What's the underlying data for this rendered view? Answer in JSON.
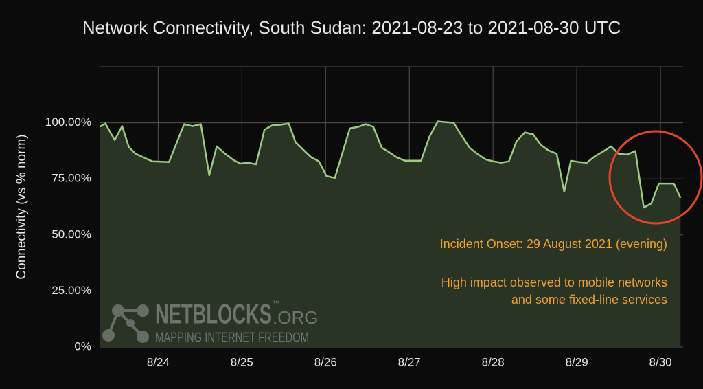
{
  "chart_data": {
    "type": "area",
    "title": "Network Connectivity, South Sudan: 2021-08-23 to 2021-08-30 UTC",
    "y_label": "Connectivity (vs % norm)",
    "x": [
      23.3,
      23.37,
      23.48,
      23.57,
      23.65,
      23.73,
      23.84,
      23.93,
      24.13,
      24.31,
      24.41,
      24.51,
      24.61,
      24.7,
      24.8,
      24.9,
      24.98,
      25.07,
      25.17,
      25.27,
      25.36,
      25.46,
      25.56,
      25.64,
      25.74,
      25.83,
      25.92,
      26.01,
      26.11,
      26.29,
      26.39,
      26.48,
      26.57,
      26.67,
      26.75,
      26.85,
      26.95,
      27.14,
      27.24,
      27.34,
      27.43,
      27.53,
      27.61,
      27.72,
      27.81,
      27.91,
      28.0,
      28.1,
      28.19,
      28.28,
      28.38,
      28.48,
      28.57,
      28.66,
      28.76,
      28.85,
      28.93,
      29.02,
      29.12,
      29.21,
      29.31,
      29.41,
      29.5,
      29.6,
      29.7,
      29.8,
      29.89,
      29.98,
      30.08,
      30.16,
      30.24
    ],
    "values": [
      98.2,
      99.7,
      92.3,
      98.5,
      89.2,
      86.2,
      84.3,
      82.8,
      82.5,
      99.4,
      98.5,
      99.4,
      76.6,
      89.5,
      86.2,
      83.4,
      81.8,
      82.2,
      81.5,
      96.9,
      98.8,
      99.1,
      99.7,
      91.4,
      87.7,
      84.6,
      82.8,
      76.3,
      75.4,
      97.5,
      98.2,
      99.4,
      98.2,
      88.9,
      87.1,
      84.6,
      83.1,
      83.1,
      93.8,
      100.6,
      100.3,
      100,
      95.1,
      88.9,
      86.2,
      83.7,
      82.8,
      82.2,
      82.8,
      91.7,
      95.7,
      94.8,
      90.2,
      87.7,
      86.2,
      69.2,
      83.1,
      82.5,
      82.2,
      84.9,
      87.1,
      89.5,
      86.2,
      85.8,
      87.4,
      62.2,
      64,
      72.9,
      72.9,
      72.9,
      66.5
    ],
    "color": "#9dcb80",
    "fill_color": "#2a3425",
    "xlim": [
      23.3,
      30.27
    ],
    "xticks": [
      {
        "value": 24,
        "label": "8/24"
      },
      {
        "value": 25,
        "label": "8/25"
      },
      {
        "value": 26,
        "label": "8/26"
      },
      {
        "value": 27,
        "label": "8/27"
      },
      {
        "value": 28,
        "label": "8/28"
      },
      {
        "value": 29,
        "label": "8/29"
      },
      {
        "value": 30,
        "label": "8/30"
      }
    ],
    "ylim": [
      0,
      125
    ],
    "yticks": [
      {
        "value": 0,
        "label": "0%"
      },
      {
        "value": 25,
        "label": "25.00%"
      },
      {
        "value": 50,
        "label": "50.00%"
      },
      {
        "value": 75,
        "label": "75.00%"
      },
      {
        "value": 100,
        "label": "100.00%"
      }
    ],
    "grid": true,
    "annotations": [
      "Incident Onset: 29 August 2021 (evening)",
      "High impact observed to mobile networks",
      "and some fixed-line services"
    ],
    "watermark": {
      "brand": "NETBLOCKS",
      "tm": "™",
      "suffix": ".ORG",
      "tagline": "MAPPING INTERNET FREEDOM"
    }
  }
}
